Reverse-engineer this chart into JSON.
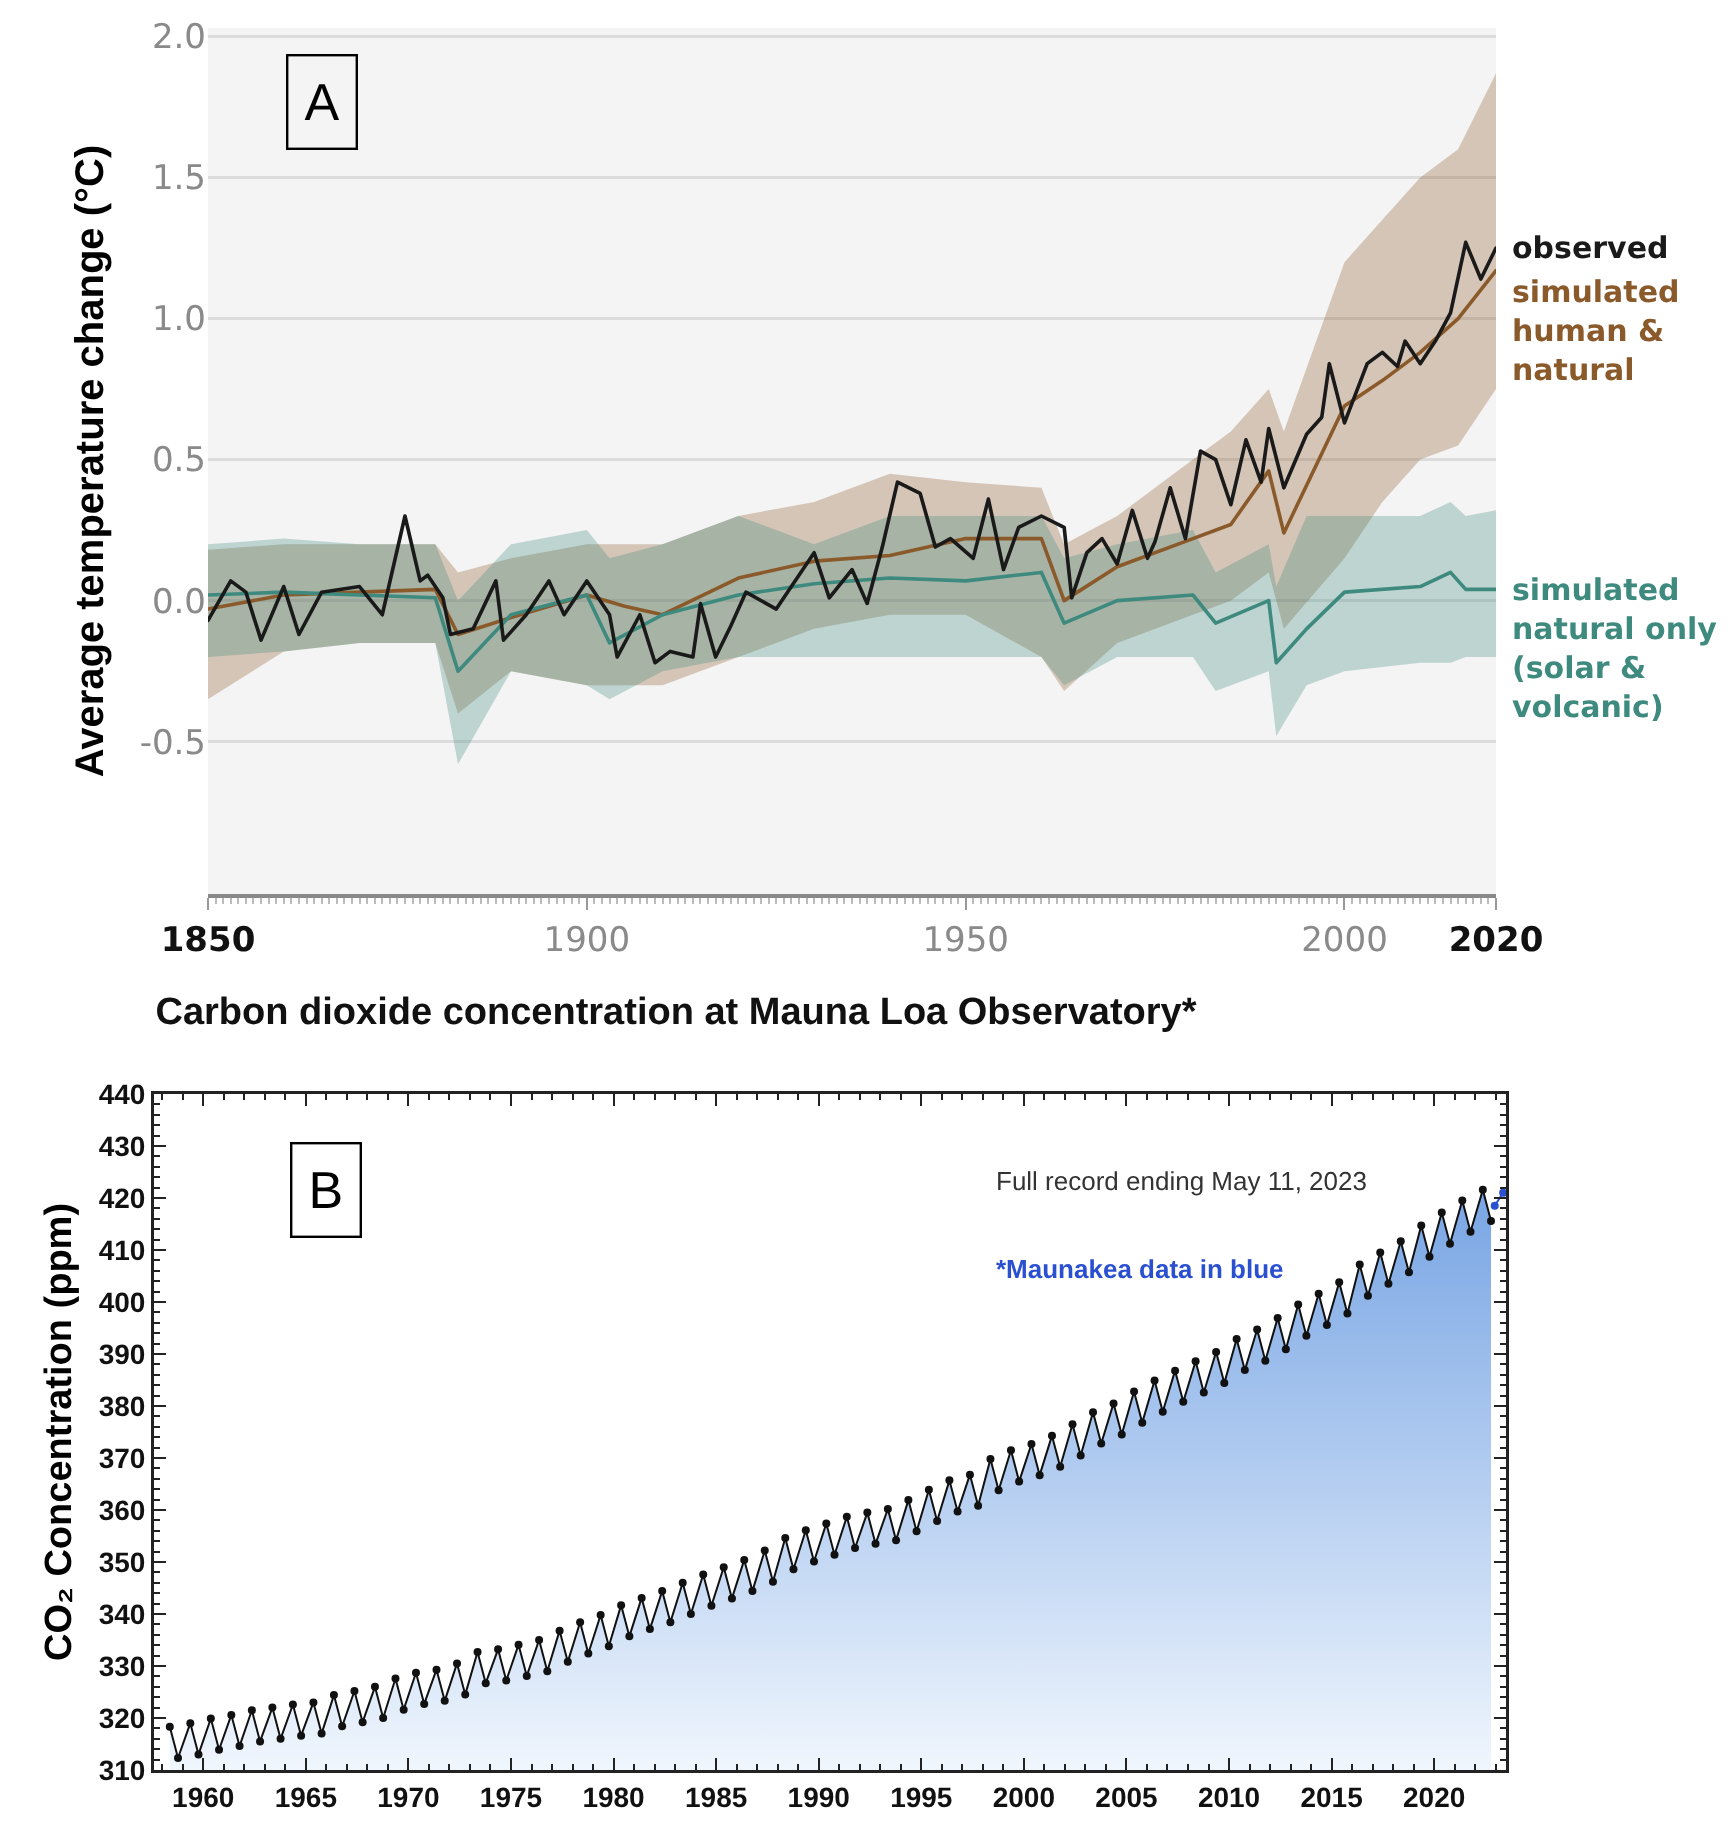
{
  "chart_data": [
    {
      "type": "line",
      "ylabel": "Average temperature change (°C)",
      "annotations": [
        "A"
      ],
      "xlim": [
        1850,
        2020
      ],
      "ylim": [
        -1.04,
        2.03
      ],
      "xticks": [
        1850,
        1900,
        1950,
        2000,
        2020
      ],
      "yticks": [
        {
          "value": -0.5,
          "label": "-0.5"
        },
        {
          "value": 0,
          "label": "0.0"
        },
        {
          "value": 0.5,
          "label": "0.5"
        },
        {
          "value": 1,
          "label": "1.0"
        },
        {
          "value": 1.5,
          "label": "1.5"
        },
        {
          "value": 2,
          "label": "2.0"
        }
      ],
      "grid": "y",
      "legend": false,
      "marker": "none",
      "series": [
        {
          "name": "simulated human & natural",
          "color": "#8b5a2b",
          "x": [
            1850,
            1860,
            1870,
            1880,
            1883,
            1890,
            1900,
            1905,
            1910,
            1920,
            1930,
            1940,
            1950,
            1960,
            1963,
            1970,
            1980,
            1985,
            1990,
            1992,
            2000,
            2005,
            2010,
            2015,
            2020
          ],
          "values": [
            -0.03,
            0.02,
            0.03,
            0.04,
            -0.12,
            -0.06,
            0.02,
            -0.02,
            -0.05,
            0.08,
            0.14,
            0.16,
            0.22,
            0.22,
            0.0,
            0.12,
            0.22,
            0.27,
            0.46,
            0.24,
            0.69,
            0.78,
            0.88,
            1.0,
            1.17
          ],
          "lower": [
            -0.35,
            -0.18,
            -0.15,
            -0.15,
            -0.4,
            -0.25,
            -0.3,
            -0.3,
            -0.3,
            -0.2,
            -0.1,
            -0.05,
            -0.05,
            -0.2,
            -0.32,
            -0.15,
            -0.05,
            0.0,
            0.1,
            -0.1,
            0.15,
            0.35,
            0.5,
            0.55,
            0.75
          ],
          "upper": [
            0.18,
            0.2,
            0.2,
            0.2,
            0.1,
            0.15,
            0.2,
            0.2,
            0.2,
            0.3,
            0.35,
            0.45,
            0.42,
            0.4,
            0.2,
            0.3,
            0.5,
            0.6,
            0.75,
            0.6,
            1.2,
            1.35,
            1.5,
            1.6,
            1.87
          ]
        },
        {
          "name": "simulated natural only (solar & volcanic)",
          "color": "#3e8a7e",
          "x": [
            1850,
            1860,
            1870,
            1880,
            1883,
            1890,
            1900,
            1903,
            1910,
            1920,
            1930,
            1940,
            1950,
            1960,
            1963,
            1970,
            1980,
            1983,
            1990,
            1991,
            1995,
            2000,
            2010,
            2014,
            2016,
            2020
          ],
          "values": [
            0.02,
            0.03,
            0.02,
            0.01,
            -0.25,
            -0.05,
            0.02,
            -0.15,
            -0.05,
            0.02,
            0.06,
            0.08,
            0.07,
            0.1,
            -0.08,
            0.0,
            0.02,
            -0.08,
            0.0,
            -0.22,
            -0.1,
            0.03,
            0.05,
            0.1,
            0.04,
            0.04
          ],
          "upper": [
            0.2,
            0.22,
            0.2,
            0.2,
            0.0,
            0.2,
            0.25,
            0.15,
            0.2,
            0.3,
            0.2,
            0.3,
            0.3,
            0.3,
            0.15,
            0.2,
            0.25,
            0.1,
            0.2,
            0.05,
            0.3,
            0.3,
            0.3,
            0.35,
            0.3,
            0.32
          ],
          "lower": [
            -0.2,
            -0.18,
            -0.15,
            -0.15,
            -0.58,
            -0.25,
            -0.3,
            -0.35,
            -0.25,
            -0.2,
            -0.2,
            -0.2,
            -0.2,
            -0.2,
            -0.3,
            -0.2,
            -0.2,
            -0.32,
            -0.25,
            -0.48,
            -0.3,
            -0.25,
            -0.22,
            -0.22,
            -0.2,
            -0.2
          ]
        },
        {
          "name": "observed",
          "color": "#1a1a1a",
          "x": [
            1850,
            1853,
            1855,
            1857,
            1860,
            1862,
            1865,
            1870,
            1873,
            1876,
            1878,
            1879,
            1881,
            1882,
            1885,
            1888,
            1889,
            1892,
            1895,
            1897,
            1900,
            1903,
            1904,
            1907,
            1909,
            1911,
            1914,
            1915,
            1917,
            1919,
            1921,
            1925,
            1927,
            1930,
            1932,
            1935,
            1937,
            1939,
            1941,
            1944,
            1946,
            1948,
            1951,
            1953,
            1955,
            1957,
            1960,
            1963,
            1964,
            1966,
            1968,
            1970,
            1972,
            1974,
            1975,
            1977,
            1979,
            1981,
            1983,
            1985,
            1987,
            1989,
            1990,
            1992,
            1995,
            1997,
            1998,
            2000,
            2003,
            2005,
            2007,
            2008,
            2010,
            2012,
            2014,
            2016,
            2018,
            2020
          ],
          "values": [
            -0.07,
            0.07,
            0.03,
            -0.14,
            0.05,
            -0.12,
            0.03,
            0.05,
            -0.05,
            0.3,
            0.07,
            0.09,
            0.01,
            -0.12,
            -0.1,
            0.07,
            -0.14,
            -0.05,
            0.07,
            -0.05,
            0.07,
            -0.05,
            -0.2,
            -0.05,
            -0.22,
            -0.18,
            -0.2,
            -0.01,
            -0.2,
            -0.09,
            0.03,
            -0.03,
            0.05,
            0.17,
            0.01,
            0.11,
            -0.01,
            0.19,
            0.42,
            0.38,
            0.19,
            0.22,
            0.15,
            0.36,
            0.11,
            0.26,
            0.3,
            0.26,
            0.01,
            0.17,
            0.22,
            0.13,
            0.32,
            0.15,
            0.21,
            0.4,
            0.22,
            0.53,
            0.5,
            0.34,
            0.57,
            0.42,
            0.61,
            0.4,
            0.59,
            0.65,
            0.84,
            0.63,
            0.84,
            0.88,
            0.83,
            0.92,
            0.84,
            0.92,
            1.02,
            1.27,
            1.14,
            1.25
          ]
        }
      ]
    },
    {
      "type": "area",
      "title": "Carbon dioxide concentration at Mauna Loa Observatory*",
      "ylabel": "CO₂ Concentration (ppm)",
      "annotations": [
        "B",
        "Full record ending May 11, 2023",
        "*Maunakea data in blue"
      ],
      "xlim": [
        1957.6,
        2023.5
      ],
      "ylim": [
        310,
        440
      ],
      "xticks": [
        1960,
        1965,
        1970,
        1975,
        1980,
        1985,
        1990,
        1995,
        2000,
        2005,
        2010,
        2015,
        2020
      ],
      "yticks": [
        310,
        320,
        330,
        340,
        350,
        360,
        370,
        380,
        390,
        400,
        410,
        420,
        430,
        440
      ],
      "grid": false,
      "legend": false,
      "marker": "circle",
      "series": [
        {
          "color": "#111111",
          "x": [
            1958.37,
            1958.77,
            1959.37,
            1959.77,
            1960.37,
            1960.77,
            1961.37,
            1961.77,
            1962.37,
            1962.77,
            1963.37,
            1963.77,
            1964.37,
            1964.77,
            1965.37,
            1965.77,
            1966.37,
            1966.77,
            1967.37,
            1967.77,
            1968.37,
            1968.77,
            1969.37,
            1969.77,
            1970.37,
            1970.77,
            1971.37,
            1971.77,
            1972.37,
            1972.77,
            1973.37,
            1973.77,
            1974.37,
            1974.77,
            1975.37,
            1975.77,
            1976.37,
            1976.77,
            1977.37,
            1977.77,
            1978.37,
            1978.77,
            1979.37,
            1979.77,
            1980.37,
            1980.77,
            1981.37,
            1981.77,
            1982.37,
            1982.77,
            1983.37,
            1983.77,
            1984.37,
            1984.77,
            1985.37,
            1985.77,
            1986.37,
            1986.77,
            1987.37,
            1987.77,
            1988.37,
            1988.77,
            1989.37,
            1989.77,
            1990.37,
            1990.77,
            1991.37,
            1991.77,
            1992.37,
            1992.77,
            1993.37,
            1993.77,
            1994.37,
            1994.77,
            1995.37,
            1995.77,
            1996.37,
            1996.77,
            1997.37,
            1997.77,
            1998.37,
            1998.77,
            1999.37,
            1999.77,
            2000.37,
            2000.77,
            2001.37,
            2001.77,
            2002.37,
            2002.77,
            2003.37,
            2003.77,
            2004.37,
            2004.77,
            2005.37,
            2005.77,
            2006.37,
            2006.77,
            2007.37,
            2007.77,
            2008.37,
            2008.77,
            2009.37,
            2009.77,
            2010.37,
            2010.77,
            2011.37,
            2011.77,
            2012.37,
            2012.77,
            2013.37,
            2013.77,
            2014.37,
            2014.77,
            2015.37,
            2015.77,
            2016.37,
            2016.77,
            2017.37,
            2017.77,
            2018.37,
            2018.77,
            2019.37,
            2019.77,
            2020.37,
            2020.77,
            2021.37,
            2021.77,
            2022.37,
            2022.77
          ],
          "values": [
            318.3,
            312.3,
            319.0,
            313.0,
            319.9,
            313.9,
            320.6,
            314.6,
            321.5,
            315.5,
            322.0,
            316.0,
            322.6,
            316.6,
            323.0,
            317.0,
            324.4,
            318.4,
            325.2,
            319.2,
            326.0,
            320.0,
            327.6,
            321.6,
            328.7,
            322.7,
            329.3,
            323.3,
            330.5,
            324.5,
            332.7,
            326.7,
            333.2,
            327.2,
            334.1,
            328.1,
            335.0,
            329.0,
            336.8,
            330.8,
            338.4,
            332.4,
            339.8,
            333.8,
            341.7,
            335.7,
            343.1,
            337.1,
            344.4,
            338.4,
            346.0,
            340.0,
            347.6,
            341.6,
            349.0,
            343.0,
            350.4,
            344.4,
            352.2,
            346.2,
            354.6,
            348.6,
            356.1,
            350.1,
            357.4,
            351.4,
            358.7,
            352.7,
            359.5,
            353.5,
            360.2,
            354.2,
            361.9,
            355.9,
            363.9,
            357.9,
            365.7,
            359.7,
            366.8,
            360.8,
            369.8,
            363.8,
            371.5,
            365.5,
            372.7,
            366.7,
            374.3,
            368.3,
            376.5,
            370.5,
            378.8,
            372.8,
            380.5,
            374.5,
            382.8,
            376.8,
            384.9,
            378.9,
            386.8,
            380.8,
            388.6,
            382.6,
            390.4,
            384.4,
            392.9,
            386.9,
            394.7,
            388.7,
            396.9,
            390.9,
            399.5,
            393.5,
            401.6,
            395.6,
            403.8,
            397.8,
            407.2,
            401.2,
            409.5,
            403.5,
            411.7,
            405.7,
            414.7,
            408.7,
            417.2,
            411.2,
            419.5,
            413.5,
            421.6,
            415.6
          ]
        },
        {
          "type": "line",
          "color": "#2a4fd0",
          "x": [
            2022.95,
            2023.36
          ],
          "values": [
            418.5,
            421.0
          ]
        }
      ]
    }
  ]
}
